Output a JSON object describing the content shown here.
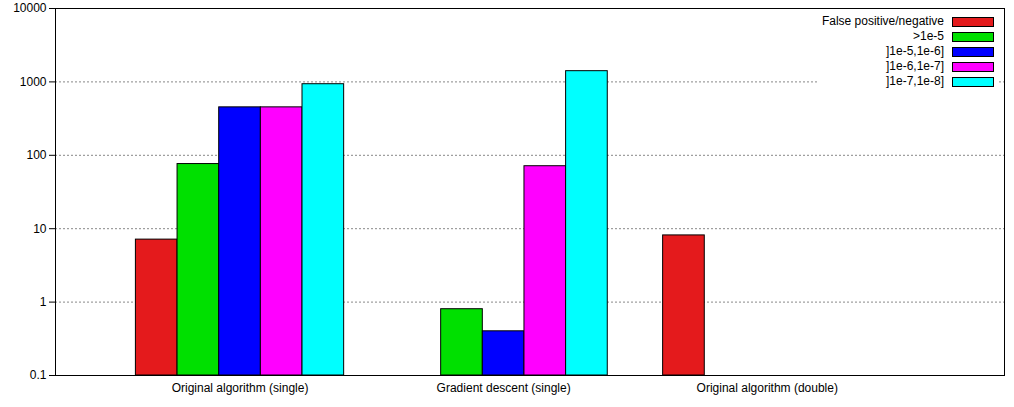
{
  "chart_data": {
    "type": "bar",
    "categories": [
      "Original algorithm (single)",
      "Gradient descent (single)",
      "Original algorithm (double)"
    ],
    "series": [
      {
        "name": "False positive/negative",
        "color": "#e41a1c",
        "values": [
          7.1,
          0.1,
          8.1
        ]
      },
      {
        "name": ">1e-5",
        "color": "#00e000",
        "values": [
          76,
          0.8,
          0.1
        ]
      },
      {
        "name": "]1e-5,1e-6]",
        "color": "#0000ff",
        "values": [
          450,
          0.4,
          0.1
        ]
      },
      {
        "name": "]1e-6,1e-7]",
        "color": "#ff00ff",
        "values": [
          450,
          71,
          0.1
        ]
      },
      {
        "name": "]1e-7,1e-8]",
        "color": "#00ffff",
        "values": [
          930,
          1400,
          0.1
        ]
      }
    ],
    "log": "y",
    "ylim": [
      0.1,
      10000
    ],
    "yticks": [
      0.1,
      1,
      10,
      100,
      1000,
      10000
    ],
    "grid": true,
    "legend": "top-right"
  }
}
